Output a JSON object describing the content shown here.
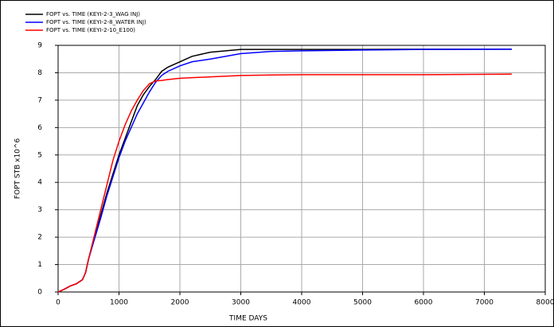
{
  "chart_data": {
    "type": "line",
    "x_label": "TIME   DAYS",
    "y_label": "FOPT   STB   x10^6",
    "x": [
      0,
      100,
      200,
      300,
      400,
      450,
      500,
      600,
      700,
      800,
      900,
      1000,
      1100,
      1200,
      1300,
      1400,
      1500,
      1600,
      1700,
      1800,
      2000,
      2200,
      2500,
      3000,
      3500,
      4000,
      5000,
      6000,
      7450
    ],
    "series": [
      {
        "name": "FOPT vs. TIME (KEYI-2-3_WAG INJ)",
        "color": "#000000",
        "values": [
          0,
          0.1,
          0.22,
          0.3,
          0.45,
          0.7,
          1.2,
          2.0,
          2.8,
          3.6,
          4.3,
          5.0,
          5.6,
          6.2,
          6.8,
          7.2,
          7.5,
          7.75,
          8.05,
          8.2,
          8.4,
          8.6,
          8.75,
          8.85,
          8.85,
          8.85,
          8.85,
          8.86,
          8.86
        ]
      },
      {
        "name": "FOPT vs. TIME (KEYI-2-8_WATER INJ)",
        "color": "#0000ff",
        "values": [
          0,
          0.1,
          0.22,
          0.3,
          0.45,
          0.7,
          1.2,
          1.95,
          2.7,
          3.5,
          4.2,
          4.9,
          5.5,
          6.0,
          6.5,
          6.9,
          7.3,
          7.65,
          7.9,
          8.05,
          8.25,
          8.4,
          8.5,
          8.7,
          8.78,
          8.8,
          8.83,
          8.85,
          8.86
        ]
      },
      {
        "name": "FOPT vs. TIME (KEYI-2-10_E100)",
        "color": "#ff0000",
        "values": [
          0,
          0.1,
          0.22,
          0.3,
          0.45,
          0.7,
          1.2,
          2.1,
          3.0,
          3.9,
          4.8,
          5.5,
          6.1,
          6.6,
          7.0,
          7.35,
          7.6,
          7.7,
          7.72,
          7.75,
          7.8,
          7.82,
          7.85,
          7.9,
          7.92,
          7.93,
          7.93,
          7.93,
          7.95
        ]
      }
    ],
    "xlim": [
      0,
      8000
    ],
    "xticks": [
      0,
      1000,
      2000,
      3000,
      4000,
      5000,
      6000,
      7000,
      8000
    ],
    "ylim": [
      0,
      9
    ],
    "yticks": [
      0,
      1,
      2,
      3,
      4,
      5,
      6,
      7,
      8,
      9
    ],
    "grid": true,
    "legend": "top-left"
  }
}
